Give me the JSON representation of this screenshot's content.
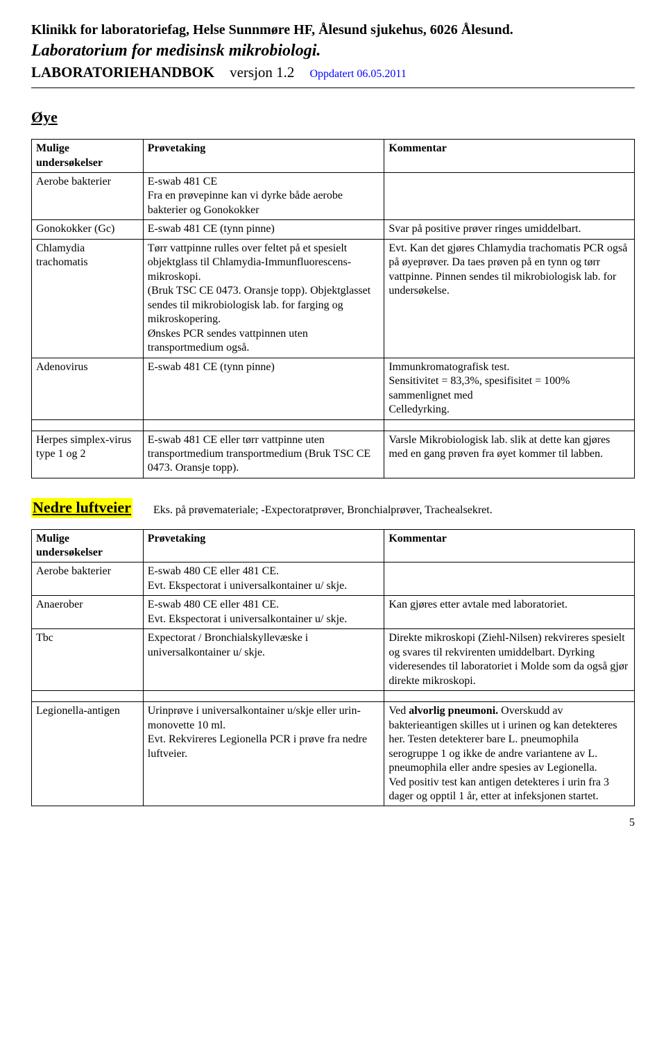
{
  "header": {
    "line1": "Klinikk for laboratoriefag, Helse Sunnmøre HF, Ålesund sjukehus, 6026 Ålesund.",
    "line2": "Laboratorium for medisinsk mikrobiologi.",
    "line3a": "LABORATORIEHANDBOK",
    "line3b": "versjon 1.2",
    "line3c": "Oppdatert 06.05.2011"
  },
  "sections": {
    "oye": {
      "title": "Øye"
    },
    "nedre": {
      "title": "Nedre luftveier",
      "subtext": "Eks. på prøvemateriale; -Expectoratprøver, Bronchialprøver, Trachealsekret."
    }
  },
  "table_headers": {
    "col1": "Mulige undersøkelser",
    "col2": "Prøvetaking",
    "col3": "Kommentar"
  },
  "oye_rows": [
    {
      "c1": "Aerobe bakterier",
      "c2": "E-swab 481 CE\nFra en prøvepinne kan vi dyrke både aerobe bakterier og Gonokokker",
      "c3": ""
    },
    {
      "c1": "Gonokokker (Gc)",
      "c2": "E-swab 481 CE (tynn pinne)",
      "c3": "Svar på positive prøver ringes umiddelbart."
    },
    {
      "c1": "Chlamydia trachomatis",
      "c2": "Tørr vattpinne rulles over feltet på et spesielt objektglass til Chlamydia-Immunfluorescens-mikroskopi.\n(Bruk TSC CE 0473. Oransje topp). Objektglasset sendes til mikrobiologisk lab. for farging og mikroskopering.\nØnskes PCR sendes vattpinnen uten transportmedium også.",
      "c3": "Evt. Kan det gjøres Chlamydia trachomatis PCR også på øyeprøver. Da taes prøven på en tynn og tørr vattpinne. Pinnen sendes til mikrobiologisk lab. for undersøkelse."
    },
    {
      "c1": "Adenovirus",
      "c2": "E-swab 481 CE (tynn pinne)",
      "c3": "Immunkromatografisk test.\nSensitivitet = 83,3%, spesifisitet = 100% sammenlignet med\nCelledyrking."
    },
    {
      "c1": "Herpes simplex-virus  type 1 og 2",
      "c2": "E-swab 481 CE eller tørr vattpinne uten transportmedium transportmedium (Bruk TSC CE 0473. Oransje topp).",
      "c3": "Varsle Mikrobiologisk lab. slik at dette kan gjøres med en gang prøven fra øyet kommer til labben."
    }
  ],
  "nedre_rows": [
    {
      "c1": "Aerobe bakterier",
      "c2": "E-swab 480 CE eller 481 CE.\nEvt. Ekspectorat i universalkontainer u/ skje.",
      "c3": ""
    },
    {
      "c1": "Anaerober",
      "c2": "E-swab 480 CE eller 481 CE.\nEvt. Ekspectorat i universalkontainer u/ skje.",
      "c3": "Kan gjøres etter avtale med laboratoriet."
    },
    {
      "c1": "Tbc",
      "c2": "Expectorat / Bronchialskyllevæske i universalkontainer u/ skje.",
      "c3": "Direkte  mikroskopi (Ziehl-Nilsen) rekvireres spesielt  og svares til rekvirenten  umiddelbart. Dyrking videresendes til laboratoriet i Molde som da også gjør direkte mikroskopi."
    },
    {
      "c1": "Legionella-antigen",
      "c2": "Urinprøve i universalkontainer u/skje eller urin-monovette 10 ml.\nEvt. Rekvireres Legionella PCR i prøve fra nedre luftveier.",
      "c3_html": "Ved <b>alvorlig pneumoni.</b> Overskudd av bakterieantigen skilles ut i urinen og kan detekteres her.  Testen detekterer bare L. pneumophila serogruppe 1 og ikke de andre variantene av L. pneumophila eller andre spesies av Legionella.<br>Ved positiv test kan antigen detekteres i urin fra 3 dager og opptil 1 år, etter at infeksjonen startet."
    }
  ],
  "page_number": "5",
  "colors": {
    "link_blue": "#0000ff",
    "highlight": "#ffff00"
  }
}
